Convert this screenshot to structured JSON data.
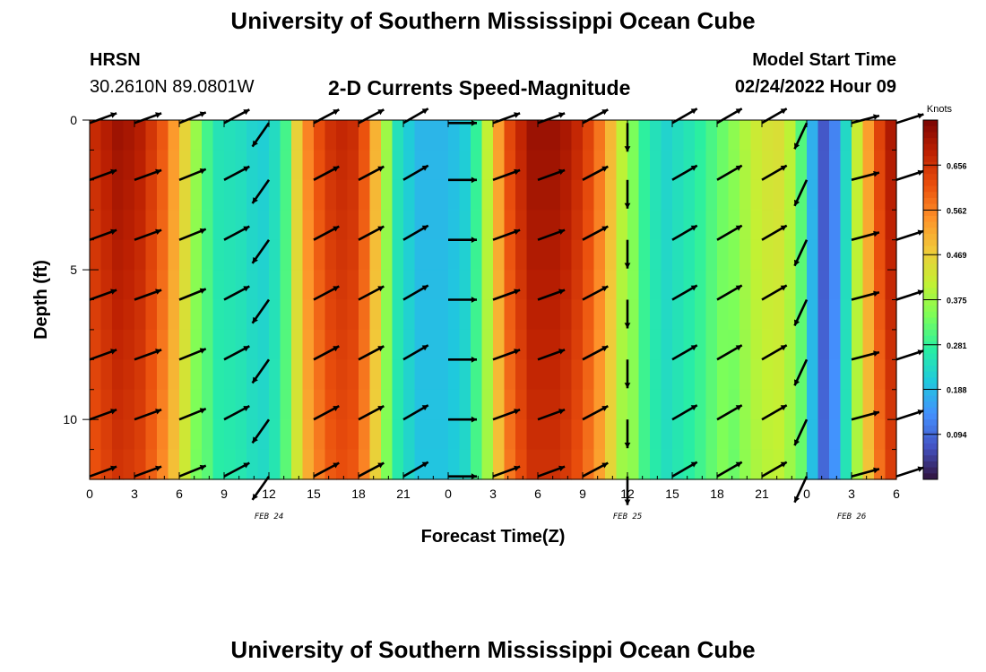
{
  "header": {
    "title": "University of Southern Mississippi Ocean Cube",
    "station": "HRSN",
    "coords": "30.2610N  89.0801W",
    "subtitle": "2-D Currents Speed-Magnitude",
    "model_label": "Model Start Time",
    "model_time": "02/24/2022 Hour 09"
  },
  "footer": {
    "title": "University of Southern Mississippi Ocean Cube"
  },
  "chart_data": {
    "type": "heatmap",
    "title": "2-D Currents Speed-Magnitude",
    "xlabel": "Forecast Time(Z)",
    "ylabel": "Depth (ft)",
    "x_tick_labels": [
      "0",
      "3",
      "6",
      "9",
      "12",
      "15",
      "18",
      "21",
      "0",
      "3",
      "6",
      "9",
      "12",
      "15",
      "18",
      "21",
      "0",
      "3",
      "6"
    ],
    "x_range_hours": [
      0,
      54
    ],
    "date_labels": [
      {
        "hour": 12,
        "text": "FEB 24"
      },
      {
        "hour": 36,
        "text": "FEB 25"
      },
      {
        "hour": 51,
        "text": "FEB 26"
      }
    ],
    "y_ticks": [
      0,
      5,
      10
    ],
    "y_range_ft": [
      0,
      12
    ],
    "y_inverted": true,
    "colorbar": {
      "unit": "Knots",
      "ticks": [
        "0.656",
        "0.562",
        "0.469",
        "0.375",
        "0.281",
        "0.188",
        "0.094"
      ],
      "tick_values": [
        0.656,
        0.562,
        0.469,
        0.375,
        0.281,
        0.188,
        0.094
      ],
      "range": [
        0.0,
        0.75
      ],
      "colors": [
        "#30123b",
        "#4454c4",
        "#4490fe",
        "#1fc9dd",
        "#29efa2",
        "#7cfe59",
        "#c3f133",
        "#f1ca3a",
        "#fe922a",
        "#ea4f0d",
        "#be2102",
        "#7a0403"
      ]
    },
    "speed_profile_hours": [
      0,
      2,
      3.5,
      5,
      6.5,
      7.5,
      8.5,
      10,
      11.5,
      12.5,
      13.3,
      14,
      15,
      16.5,
      18,
      18.8,
      19.5,
      20.5,
      22,
      24,
      25.5,
      26.2,
      27,
      28,
      29.5,
      31.5,
      33,
      34.5,
      35.5,
      37,
      38.5,
      40.5,
      42.5,
      44.5,
      46,
      47,
      47.8,
      48.5,
      49.3,
      50.5,
      51.5,
      53,
      54
    ],
    "speed_profile_knots": [
      0.66,
      0.72,
      0.69,
      0.6,
      0.45,
      0.32,
      0.25,
      0.24,
      0.21,
      0.24,
      0.31,
      0.5,
      0.6,
      0.68,
      0.66,
      0.56,
      0.45,
      0.25,
      0.18,
      0.18,
      0.22,
      0.33,
      0.48,
      0.62,
      0.72,
      0.72,
      0.66,
      0.55,
      0.42,
      0.28,
      0.22,
      0.26,
      0.33,
      0.42,
      0.45,
      0.4,
      0.28,
      0.15,
      0.05,
      0.2,
      0.45,
      0.65,
      0.73
    ],
    "arrow_columns_hours": [
      0,
      3,
      6,
      9,
      12,
      15,
      18,
      21,
      24,
      27,
      30,
      33,
      36,
      39,
      42,
      45,
      48,
      51,
      54
    ],
    "arrow_angles_deg": [
      20,
      20,
      22,
      28,
      -125,
      28,
      28,
      30,
      0,
      20,
      20,
      28,
      -90,
      30,
      30,
      30,
      -115,
      15,
      18
    ],
    "arrow_depths_ft": [
      0.1,
      2,
      4,
      6,
      8,
      10,
      11.9
    ]
  }
}
